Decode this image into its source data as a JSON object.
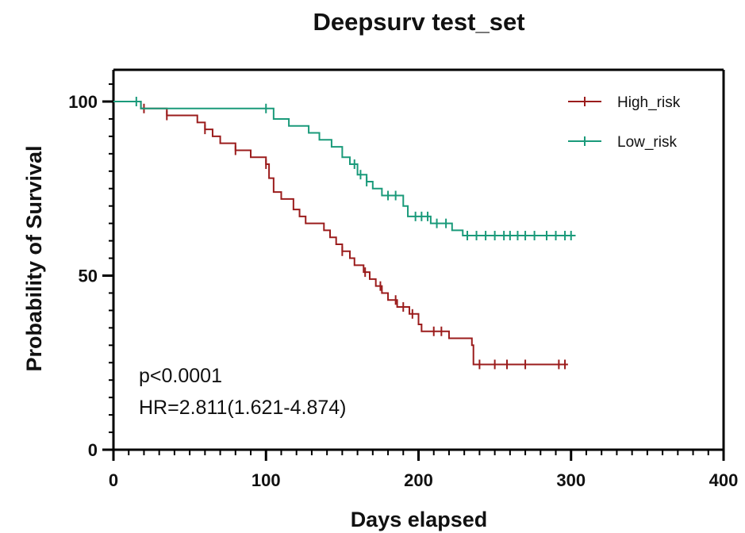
{
  "chart_data": {
    "type": "line",
    "title": "Deepsurv test_set",
    "xlabel": "Days elapsed",
    "ylabel": "Probability of Survival",
    "xlim": [
      0,
      400
    ],
    "ylim": [
      0,
      100
    ],
    "xticks": [
      0,
      100,
      200,
      300,
      400
    ],
    "yticks": [
      0,
      50,
      100
    ],
    "grid": false,
    "legend_position": "top-right",
    "annotations": [
      "p<0.0001",
      "HR=2.811(1.621-4.874)"
    ],
    "series": [
      {
        "name": "High_risk",
        "color": "#9b1c1c",
        "steps": [
          [
            0,
            100
          ],
          [
            18,
            98
          ],
          [
            35,
            96
          ],
          [
            55,
            94
          ],
          [
            60,
            92
          ],
          [
            65,
            90
          ],
          [
            70,
            88
          ],
          [
            80,
            86
          ],
          [
            90,
            84
          ],
          [
            100,
            82
          ],
          [
            102,
            78
          ],
          [
            105,
            74
          ],
          [
            110,
            72
          ],
          [
            118,
            69
          ],
          [
            122,
            67
          ],
          [
            126,
            65
          ],
          [
            138,
            63
          ],
          [
            142,
            61
          ],
          [
            146,
            59
          ],
          [
            150,
            57
          ],
          [
            155,
            55
          ],
          [
            158,
            53
          ],
          [
            164,
            51
          ],
          [
            168,
            49
          ],
          [
            172,
            47
          ],
          [
            176,
            45
          ],
          [
            180,
            43
          ],
          [
            186,
            41
          ],
          [
            194,
            39
          ],
          [
            200,
            36
          ],
          [
            202,
            34
          ],
          [
            220,
            32
          ],
          [
            235,
            30
          ],
          [
            236,
            24.5
          ],
          [
            298,
            24.5
          ]
        ],
        "censored": [
          20,
          35,
          60,
          80,
          100,
          150,
          165,
          175,
          185,
          190,
          196,
          210,
          215,
          240,
          250,
          258,
          270,
          292,
          296
        ]
      },
      {
        "name": "Low_risk",
        "color": "#1a9a7a",
        "steps": [
          [
            0,
            100
          ],
          [
            18,
            98
          ],
          [
            105,
            95
          ],
          [
            115,
            93
          ],
          [
            128,
            91
          ],
          [
            135,
            89
          ],
          [
            143,
            87
          ],
          [
            150,
            84
          ],
          [
            155,
            82
          ],
          [
            160,
            79
          ],
          [
            166,
            77
          ],
          [
            170,
            75
          ],
          [
            176,
            73
          ],
          [
            190,
            70
          ],
          [
            193,
            67
          ],
          [
            208,
            65
          ],
          [
            222,
            63
          ],
          [
            229,
            61.5
          ],
          [
            303,
            61.5
          ]
        ],
        "censored": [
          15,
          100,
          158,
          162,
          166,
          180,
          185,
          198,
          202,
          206,
          212,
          218,
          232,
          238,
          244,
          250,
          256,
          260,
          265,
          270,
          276,
          284,
          290,
          296,
          300
        ]
      }
    ]
  }
}
